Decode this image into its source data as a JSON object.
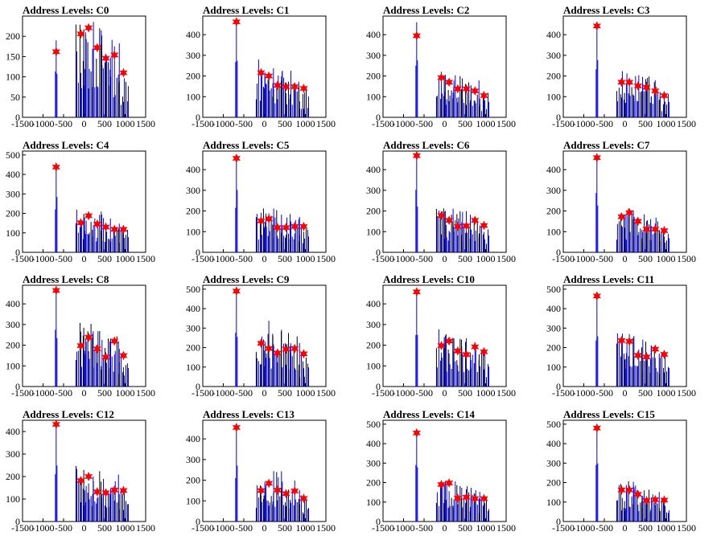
{
  "figure": {
    "layout": "4x4 grid of histograms"
  },
  "colors": {
    "bars_primary": "#0000ff",
    "bars_secondary": "#000000",
    "peak_marker": "#ff0000"
  },
  "chart_data": [
    {
      "type": "bar",
      "title": "Address Levels: C0",
      "x_ticks": [
        "-1500",
        "-1000",
        "-500",
        "0",
        "500",
        "1000",
        "1500"
      ],
      "y_ticks": [
        "0",
        "50",
        "100",
        "150",
        "200"
      ],
      "ylim": [
        0,
        250
      ],
      "xlim": [
        -1500,
        1500
      ],
      "peaks": [
        {
          "x": -680,
          "y": 162
        },
        {
          "x": -80,
          "y": 206
        },
        {
          "x": 110,
          "y": 221
        },
        {
          "x": 320,
          "y": 172
        },
        {
          "x": 530,
          "y": 146
        },
        {
          "x": 740,
          "y": 154
        },
        {
          "x": 960,
          "y": 110
        }
      ],
      "bar_max": [
        190,
        250,
        240,
        235,
        215,
        195,
        120
      ]
    },
    {
      "type": "bar",
      "title": "Address Levels: C1",
      "x_ticks": [
        "-1500",
        "-1000",
        "-500",
        "0",
        "500",
        "1000",
        "1500"
      ],
      "y_ticks": [
        "0",
        "100",
        "200",
        "300",
        "400"
      ],
      "ylim": [
        0,
        490
      ],
      "xlim": [
        -1500,
        1500
      ],
      "peaks": [
        {
          "x": -680,
          "y": 462
        },
        {
          "x": -80,
          "y": 216
        },
        {
          "x": 110,
          "y": 200
        },
        {
          "x": 320,
          "y": 155
        },
        {
          "x": 530,
          "y": 148
        },
        {
          "x": 740,
          "y": 148
        },
        {
          "x": 960,
          "y": 140
        }
      ],
      "bar_max": [
        470,
        300,
        265,
        265,
        230,
        225,
        160
      ]
    },
    {
      "type": "bar",
      "title": "Address Levels: C2",
      "x_ticks": [
        "-1500",
        "-1000",
        "-500",
        "0",
        "500",
        "1000",
        "1500"
      ],
      "y_ticks": [
        "0",
        "100",
        "200",
        "300",
        "400"
      ],
      "ylim": [
        0,
        490
      ],
      "xlim": [
        -1500,
        1500
      ],
      "peaks": [
        {
          "x": -680,
          "y": 395
        },
        {
          "x": -80,
          "y": 192
        },
        {
          "x": 110,
          "y": 170
        },
        {
          "x": 320,
          "y": 138
        },
        {
          "x": 530,
          "y": 138
        },
        {
          "x": 740,
          "y": 128
        },
        {
          "x": 960,
          "y": 105
        }
      ],
      "bar_max": [
        460,
        240,
        220,
        215,
        195,
        180,
        120
      ]
    },
    {
      "type": "bar",
      "title": "Address Levels: C3",
      "x_ticks": [
        "-1500",
        "-1000",
        "-500",
        "0",
        "500",
        "1000",
        "1500"
      ],
      "y_ticks": [
        "0",
        "100",
        "200",
        "300",
        "400"
      ],
      "ylim": [
        0,
        490
      ],
      "xlim": [
        -1500,
        1500
      ],
      "peaks": [
        {
          "x": -680,
          "y": 442
        },
        {
          "x": -80,
          "y": 170
        },
        {
          "x": 110,
          "y": 170
        },
        {
          "x": 320,
          "y": 152
        },
        {
          "x": 530,
          "y": 145
        },
        {
          "x": 740,
          "y": 128
        },
        {
          "x": 960,
          "y": 105
        }
      ],
      "bar_max": [
        450,
        235,
        225,
        225,
        200,
        185,
        120
      ]
    },
    {
      "type": "bar",
      "title": "Address Levels: C4",
      "x_ticks": [
        "-1500",
        "-1000",
        "-500",
        "0",
        "500",
        "1000",
        "1500"
      ],
      "y_ticks": [
        "0",
        "100",
        "200",
        "300",
        "400",
        "500"
      ],
      "ylim": [
        0,
        520
      ],
      "xlim": [
        -1500,
        1500
      ],
      "peaks": [
        {
          "x": -680,
          "y": 438
        },
        {
          "x": -80,
          "y": 152
        },
        {
          "x": 110,
          "y": 188
        },
        {
          "x": 320,
          "y": 145
        },
        {
          "x": 530,
          "y": 130
        },
        {
          "x": 740,
          "y": 118
        },
        {
          "x": 960,
          "y": 118
        }
      ],
      "bar_max": [
        450,
        225,
        220,
        210,
        195,
        180,
        130
      ]
    },
    {
      "type": "bar",
      "title": "Address Levels: C5",
      "x_ticks": [
        "-1500",
        "-1000",
        "-500",
        "0",
        "500",
        "1000",
        "1500"
      ],
      "y_ticks": [
        "0",
        "100",
        "200",
        "300",
        "400"
      ],
      "ylim": [
        0,
        490
      ],
      "xlim": [
        -1500,
        1500
      ],
      "peaks": [
        {
          "x": -680,
          "y": 455
        },
        {
          "x": -80,
          "y": 152
        },
        {
          "x": 110,
          "y": 162
        },
        {
          "x": 320,
          "y": 120
        },
        {
          "x": 530,
          "y": 120
        },
        {
          "x": 740,
          "y": 125
        },
        {
          "x": 960,
          "y": 125
        }
      ],
      "bar_max": [
        465,
        215,
        230,
        220,
        190,
        175,
        130
      ]
    },
    {
      "type": "bar",
      "title": "Address Levels: C6",
      "x_ticks": [
        "-1500",
        "-1000",
        "-500",
        "0",
        "500",
        "1000",
        "1500"
      ],
      "y_ticks": [
        "0",
        "100",
        "200",
        "300",
        "400"
      ],
      "ylim": [
        0,
        490
      ],
      "xlim": [
        -1500,
        1500
      ],
      "peaks": [
        {
          "x": -680,
          "y": 468
        },
        {
          "x": -80,
          "y": 178
        },
        {
          "x": 110,
          "y": 155
        },
        {
          "x": 320,
          "y": 125
        },
        {
          "x": 530,
          "y": 128
        },
        {
          "x": 740,
          "y": 155
        },
        {
          "x": 960,
          "y": 130
        }
      ],
      "bar_max": [
        475,
        230,
        220,
        220,
        200,
        185,
        140
      ]
    },
    {
      "type": "bar",
      "title": "Address Levels: C7",
      "x_ticks": [
        "-1500",
        "-1000",
        "-500",
        "0",
        "500",
        "1000",
        "1500"
      ],
      "y_ticks": [
        "0",
        "100",
        "200",
        "300",
        "400"
      ],
      "ylim": [
        0,
        490
      ],
      "xlim": [
        -1500,
        1500
      ],
      "peaks": [
        {
          "x": -680,
          "y": 458
        },
        {
          "x": -80,
          "y": 172
        },
        {
          "x": 110,
          "y": 192
        },
        {
          "x": 320,
          "y": 150
        },
        {
          "x": 530,
          "y": 112
        },
        {
          "x": 740,
          "y": 112
        },
        {
          "x": 960,
          "y": 105
        }
      ],
      "bar_max": [
        470,
        210,
        230,
        220,
        190,
        170,
        120
      ]
    },
    {
      "type": "bar",
      "title": "Address Levels: C8",
      "x_ticks": [
        "-1500",
        "-1000",
        "-500",
        "0",
        "500",
        "1000",
        "1500"
      ],
      "y_ticks": [
        "0",
        "100",
        "200",
        "300",
        "400"
      ],
      "ylim": [
        0,
        490
      ],
      "xlim": [
        -1500,
        1500
      ],
      "peaks": [
        {
          "x": -680,
          "y": 465
        },
        {
          "x": -80,
          "y": 198
        },
        {
          "x": 110,
          "y": 238
        },
        {
          "x": 320,
          "y": 182
        },
        {
          "x": 530,
          "y": 142
        },
        {
          "x": 740,
          "y": 220
        },
        {
          "x": 960,
          "y": 150
        }
      ],
      "bar_max": [
        470,
        310,
        320,
        300,
        280,
        260,
        160
      ]
    },
    {
      "type": "bar",
      "title": "Address Levels: C9",
      "x_ticks": [
        "-1500",
        "-1000",
        "-500",
        "0",
        "500",
        "1000",
        "1500"
      ],
      "y_ticks": [
        "0",
        "100",
        "200",
        "300",
        "400",
        "500"
      ],
      "ylim": [
        0,
        520
      ],
      "xlim": [
        -1500,
        1500
      ],
      "peaks": [
        {
          "x": -680,
          "y": 490
        },
        {
          "x": -80,
          "y": 222
        },
        {
          "x": 110,
          "y": 195
        },
        {
          "x": 320,
          "y": 172
        },
        {
          "x": 530,
          "y": 192
        },
        {
          "x": 740,
          "y": 195
        },
        {
          "x": 960,
          "y": 168
        }
      ],
      "bar_max": [
        495,
        330,
        360,
        320,
        290,
        260,
        180
      ]
    },
    {
      "type": "bar",
      "title": "Address Levels: C10",
      "x_ticks": [
        "-1500",
        "-1000",
        "-500",
        "0",
        "500",
        "1000",
        "1500"
      ],
      "y_ticks": [
        "0",
        "100",
        "200",
        "300",
        "400"
      ],
      "ylim": [
        0,
        490
      ],
      "xlim": [
        -1500,
        1500
      ],
      "peaks": [
        {
          "x": -680,
          "y": 458
        },
        {
          "x": -80,
          "y": 198
        },
        {
          "x": 110,
          "y": 220
        },
        {
          "x": 320,
          "y": 172
        },
        {
          "x": 530,
          "y": 155
        },
        {
          "x": 740,
          "y": 192
        },
        {
          "x": 960,
          "y": 168
        }
      ],
      "bar_max": [
        470,
        280,
        270,
        260,
        250,
        240,
        180
      ]
    },
    {
      "type": "bar",
      "title": "Address Levels: C11",
      "x_ticks": [
        "-1500",
        "-1000",
        "-500",
        "0",
        "500",
        "1000",
        "1500"
      ],
      "y_ticks": [
        "0",
        "100",
        "200",
        "300",
        "400",
        "500"
      ],
      "ylim": [
        0,
        520
      ],
      "xlim": [
        -1500,
        1500
      ],
      "peaks": [
        {
          "x": -680,
          "y": 465
        },
        {
          "x": -80,
          "y": 236
        },
        {
          "x": 110,
          "y": 232
        },
        {
          "x": 320,
          "y": 160
        },
        {
          "x": 530,
          "y": 152
        },
        {
          "x": 740,
          "y": 192
        },
        {
          "x": 960,
          "y": 165
        }
      ],
      "bar_max": [
        470,
        280,
        270,
        260,
        240,
        220,
        180
      ]
    },
    {
      "type": "bar",
      "title": "Address Levels: C12",
      "x_ticks": [
        "-1500",
        "-1000",
        "-500",
        "0",
        "500",
        "1000",
        "1500"
      ],
      "y_ticks": [
        "0",
        "100",
        "200",
        "300",
        "400"
      ],
      "ylim": [
        0,
        450
      ],
      "xlim": [
        -1500,
        1500
      ],
      "peaks": [
        {
          "x": -680,
          "y": 432
        },
        {
          "x": -80,
          "y": 182
        },
        {
          "x": 110,
          "y": 200
        },
        {
          "x": 320,
          "y": 132
        },
        {
          "x": 530,
          "y": 128
        },
        {
          "x": 740,
          "y": 140
        },
        {
          "x": 960,
          "y": 138
        }
      ],
      "bar_max": [
        440,
        270,
        260,
        255,
        230,
        210,
        150
      ]
    },
    {
      "type": "bar",
      "title": "Address Levels: C13",
      "x_ticks": [
        "-1500",
        "-1000",
        "-500",
        "0",
        "500",
        "1000",
        "1500"
      ],
      "y_ticks": [
        "0",
        "100",
        "200",
        "300",
        "400"
      ],
      "ylim": [
        0,
        490
      ],
      "xlim": [
        -1500,
        1500
      ],
      "peaks": [
        {
          "x": -680,
          "y": 455
        },
        {
          "x": -80,
          "y": 150
        },
        {
          "x": 110,
          "y": 185
        },
        {
          "x": 320,
          "y": 152
        },
        {
          "x": 530,
          "y": 135
        },
        {
          "x": 740,
          "y": 148
        },
        {
          "x": 960,
          "y": 112
        }
      ],
      "bar_max": [
        465,
        230,
        250,
        245,
        230,
        205,
        130
      ]
    },
    {
      "type": "bar",
      "title": "Address Levels: C14",
      "x_ticks": [
        "-1500",
        "-1000",
        "-500",
        "0",
        "500",
        "1000",
        "1500"
      ],
      "y_ticks": [
        "0",
        "100",
        "200",
        "300",
        "400",
        "500"
      ],
      "ylim": [
        0,
        520
      ],
      "xlim": [
        -1500,
        1500
      ],
      "peaks": [
        {
          "x": -680,
          "y": 455
        },
        {
          "x": -80,
          "y": 190
        },
        {
          "x": 110,
          "y": 198
        },
        {
          "x": 320,
          "y": 120
        },
        {
          "x": 530,
          "y": 125
        },
        {
          "x": 740,
          "y": 118
        },
        {
          "x": 960,
          "y": 118
        }
      ],
      "bar_max": [
        465,
        230,
        220,
        210,
        190,
        170,
        130
      ]
    },
    {
      "type": "bar",
      "title": "Address Levels: C15",
      "x_ticks": [
        "-1500",
        "-1000",
        "-500",
        "0",
        "500",
        "1000",
        "1500"
      ],
      "y_ticks": [
        "0",
        "100",
        "200",
        "300",
        "400",
        "500"
      ],
      "ylim": [
        0,
        520
      ],
      "xlim": [
        -1500,
        1500
      ],
      "peaks": [
        {
          "x": -680,
          "y": 480
        },
        {
          "x": -80,
          "y": 162
        },
        {
          "x": 110,
          "y": 162
        },
        {
          "x": 320,
          "y": 140
        },
        {
          "x": 530,
          "y": 108
        },
        {
          "x": 740,
          "y": 112
        },
        {
          "x": 960,
          "y": 110
        }
      ],
      "bar_max": [
        485,
        200,
        210,
        200,
        180,
        165,
        120
      ]
    }
  ]
}
